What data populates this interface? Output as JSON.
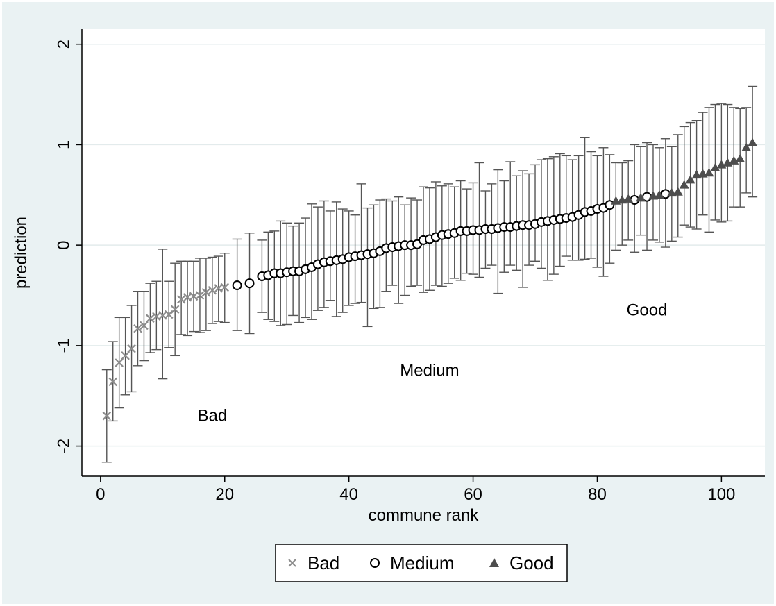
{
  "chart_data": {
    "type": "scatter",
    "title": "",
    "xlabel": "commune rank",
    "ylabel": "prediction",
    "xlim": [
      -3,
      107
    ],
    "ylim": [
      -2.3,
      2.15
    ],
    "xticks": [
      0,
      20,
      40,
      60,
      80,
      100
    ],
    "yticks": [
      -2,
      -1,
      0,
      1,
      2
    ],
    "xtick_labels": [
      "0",
      "20",
      "40",
      "60",
      "80",
      "100"
    ],
    "ytick_labels": [
      "-2",
      "-1",
      "0",
      "1",
      "2"
    ],
    "grid": "horizontal",
    "legend_position": "bottom",
    "error_bars": true,
    "annotations": [
      {
        "text": "Bad",
        "x": 18,
        "y": -1.7
      },
      {
        "text": "Medium",
        "x": 53,
        "y": -1.25
      },
      {
        "text": "Good",
        "x": 88,
        "y": -0.65
      }
    ],
    "series": [
      {
        "name": "Bad",
        "marker": "x",
        "color": "#8c8c8c",
        "x": [
          1,
          2,
          3,
          4,
          5,
          6,
          7,
          8,
          9,
          10,
          11,
          12,
          13,
          14,
          15,
          16,
          17,
          18,
          19,
          20
        ],
        "y": [
          -1.7,
          -1.36,
          -1.17,
          -1.1,
          -1.03,
          -0.83,
          -0.8,
          -0.73,
          -0.71,
          -0.7,
          -0.69,
          -0.64,
          -0.54,
          -0.52,
          -0.51,
          -0.5,
          -0.47,
          -0.45,
          -0.43,
          -0.42
        ],
        "low": [
          -2.16,
          -1.75,
          -1.62,
          -1.49,
          -1.46,
          -1.2,
          -1.15,
          -1.07,
          -1.04,
          -1.33,
          -1.02,
          -1.1,
          -0.89,
          -0.9,
          -0.86,
          -0.87,
          -0.85,
          -0.78,
          -0.76,
          -0.77
        ],
        "high": [
          -1.24,
          -0.96,
          -0.72,
          -0.72,
          -0.6,
          -0.46,
          -0.46,
          -0.38,
          -0.36,
          -0.04,
          -0.36,
          -0.18,
          -0.16,
          -0.16,
          -0.16,
          -0.13,
          -0.13,
          -0.12,
          -0.11,
          -0.08
        ]
      },
      {
        "name": "Medium",
        "marker": "circle",
        "color": "#000000",
        "x": [
          22,
          24,
          26,
          27,
          28,
          29,
          30,
          31,
          32,
          33,
          34,
          35,
          36,
          37,
          38,
          39,
          40,
          41,
          42,
          43,
          44,
          45,
          46,
          47,
          48,
          49,
          50,
          51,
          52,
          53,
          54,
          55,
          56,
          57,
          58,
          59,
          60,
          61,
          62,
          63,
          64,
          65,
          66,
          67,
          68,
          69,
          70,
          71,
          72,
          73,
          74,
          75,
          76,
          77,
          78,
          79,
          80,
          81,
          82,
          86,
          88,
          91
        ],
        "y": [
          -0.4,
          -0.38,
          -0.31,
          -0.3,
          -0.28,
          -0.28,
          -0.27,
          -0.26,
          -0.26,
          -0.24,
          -0.22,
          -0.19,
          -0.17,
          -0.16,
          -0.15,
          -0.14,
          -0.12,
          -0.11,
          -0.1,
          -0.09,
          -0.08,
          -0.06,
          -0.03,
          -0.02,
          -0.01,
          0.0,
          0.0,
          0.01,
          0.05,
          0.06,
          0.08,
          0.1,
          0.11,
          0.12,
          0.14,
          0.14,
          0.15,
          0.15,
          0.16,
          0.16,
          0.17,
          0.18,
          0.18,
          0.19,
          0.2,
          0.2,
          0.21,
          0.23,
          0.24,
          0.25,
          0.26,
          0.27,
          0.28,
          0.3,
          0.33,
          0.34,
          0.36,
          0.37,
          0.4,
          0.45,
          0.48,
          0.51
        ],
        "low": [
          -0.85,
          -0.88,
          -0.67,
          -0.74,
          -0.76,
          -0.8,
          -0.79,
          -0.7,
          -0.77,
          -0.72,
          -0.74,
          -0.65,
          -0.62,
          -0.55,
          -0.71,
          -0.67,
          -0.6,
          -0.58,
          -0.57,
          -0.81,
          -0.63,
          -0.62,
          -0.46,
          -0.4,
          -0.58,
          -0.5,
          -0.41,
          -0.4,
          -0.47,
          -0.45,
          -0.4,
          -0.41,
          -0.38,
          -0.33,
          -0.35,
          -0.28,
          -0.29,
          -0.32,
          -0.23,
          -0.2,
          -0.48,
          -0.27,
          -0.2,
          -0.25,
          -0.42,
          -0.2,
          -0.16,
          -0.23,
          -0.35,
          -0.29,
          -0.21,
          -0.11,
          -0.15,
          -0.15,
          -0.14,
          -0.13,
          -0.22,
          -0.31,
          -0.18,
          -0.07,
          -0.05,
          -0.02
        ],
        "high": [
          0.06,
          0.12,
          0.05,
          0.13,
          0.14,
          0.24,
          0.22,
          0.19,
          0.22,
          0.27,
          0.41,
          0.38,
          0.44,
          0.34,
          0.43,
          0.36,
          0.34,
          0.3,
          0.61,
          0.37,
          0.4,
          0.45,
          0.46,
          0.44,
          0.48,
          0.4,
          0.47,
          0.45,
          0.58,
          0.57,
          0.63,
          0.59,
          0.61,
          0.58,
          0.64,
          0.56,
          0.62,
          0.82,
          0.54,
          0.61,
          0.75,
          0.64,
          0.83,
          0.69,
          0.74,
          0.71,
          0.8,
          0.85,
          0.86,
          0.88,
          0.91,
          0.89,
          0.85,
          0.89,
          1.07,
          0.93,
          0.89,
          0.97,
          0.9,
          1.0,
          1.02,
          1.06
        ]
      },
      {
        "name": "Good",
        "marker": "triangle",
        "color": "#4d4d4d",
        "x": [
          83,
          84,
          85,
          87,
          89,
          90,
          92,
          93,
          94,
          95,
          96,
          97,
          98,
          99,
          100,
          101,
          102,
          103,
          104,
          105
        ],
        "y": [
          0.44,
          0.45,
          0.46,
          0.47,
          0.49,
          0.5,
          0.52,
          0.53,
          0.6,
          0.65,
          0.7,
          0.71,
          0.72,
          0.77,
          0.8,
          0.82,
          0.84,
          0.86,
          0.97,
          1.02
        ],
        "low": [
          -0.05,
          0.0,
          0.05,
          0.1,
          0.05,
          0.03,
          0.04,
          0.08,
          0.2,
          0.18,
          0.16,
          0.3,
          0.13,
          0.25,
          0.23,
          0.24,
          0.38,
          0.38,
          0.52,
          0.48
        ],
        "high": [
          0.82,
          0.82,
          0.84,
          0.98,
          1.0,
          0.97,
          0.98,
          1.1,
          1.18,
          1.22,
          1.24,
          1.32,
          1.37,
          1.4,
          1.41,
          1.4,
          1.37,
          1.36,
          1.37,
          1.58
        ]
      }
    ]
  }
}
